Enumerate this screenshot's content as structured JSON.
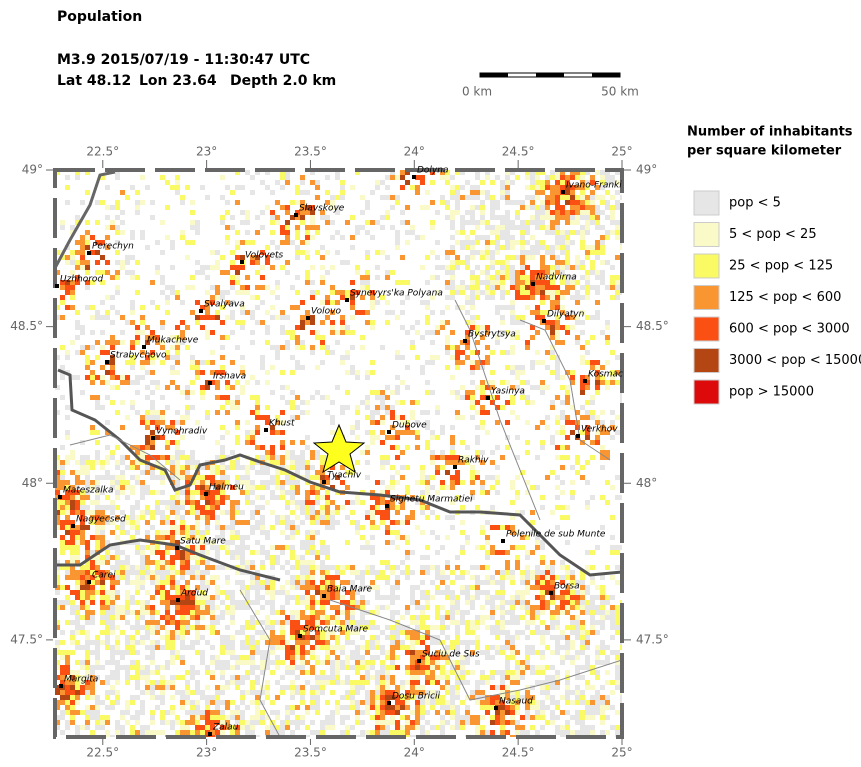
{
  "header": {
    "title": "Population",
    "event": "M3.9  2015/07/19 - 11:30:47 UTC",
    "location": [
      "Lat 48.12",
      "Lon 23.64",
      "Depth  2.0 km"
    ]
  },
  "scale_bar": {
    "start": "0 km",
    "end": "50 km"
  },
  "map": {
    "lonlim": [
      22.27,
      25
    ],
    "latlim": [
      47.19,
      49
    ],
    "lonticks": [
      {
        "value": 22.5,
        "label": "22.5°"
      },
      {
        "value": 23,
        "label": "23°"
      },
      {
        "value": 23.5,
        "label": "23.5°"
      },
      {
        "value": 24,
        "label": "24°"
      },
      {
        "value": 24.5,
        "label": "24.5°"
      },
      {
        "value": 25,
        "label": "25°"
      }
    ],
    "latticks": [
      {
        "value": 49,
        "label": "49°"
      },
      {
        "value": 48.5,
        "label": "48.5°"
      },
      {
        "value": 48,
        "label": "48°"
      },
      {
        "value": 47.5,
        "label": "47.5°"
      }
    ],
    "cities": [
      "Dolyna",
      "Ivano-Franki",
      "Slavskoye",
      "Perechyn",
      "Volovets",
      "Uzhhorod",
      "Nadvirna",
      "Synevyrs'ka Polyana",
      "Svalyava",
      "Volovo",
      "Dilyatyn",
      "Bystrytsya",
      "Mukacheve",
      "Strabychovo",
      "Kosmac",
      "Irshava",
      "Yasinya",
      "Khust",
      "Dubove",
      "Vynohradiv",
      "Verkhov",
      "Rakhiv",
      "Tyachiv",
      "Halmeu",
      "Mateszalka",
      "Sighetu Marmatiei",
      "Nagyecsed",
      "Polenile de sub Munte",
      "Satu Mare",
      "Carei",
      "Borsa",
      "Baia Mare",
      "Ardud",
      "Somcuta Mare",
      "Suciu de Sus",
      "Margita",
      "Dosu Bricii",
      "Nasaud",
      "Zalau"
    ]
  },
  "legend": {
    "title": [
      "Number of inhabitants",
      "per square kilometer"
    ],
    "items": [
      {
        "label": "pop < 5",
        "color": "#e6e6e6"
      },
      {
        "label": "5 < pop < 25",
        "color": "#fafac8"
      },
      {
        "label": "25 < pop < 125",
        "color": "#fafa64"
      },
      {
        "label": "125 < pop < 600",
        "color": "#fa9632"
      },
      {
        "label": "600 < pop < 3000",
        "color": "#fa5014"
      },
      {
        "label": "3000 < pop < 15000",
        "color": "#b44614"
      },
      {
        "label": "pop > 15000",
        "color": "#dc0a0a"
      }
    ]
  }
}
